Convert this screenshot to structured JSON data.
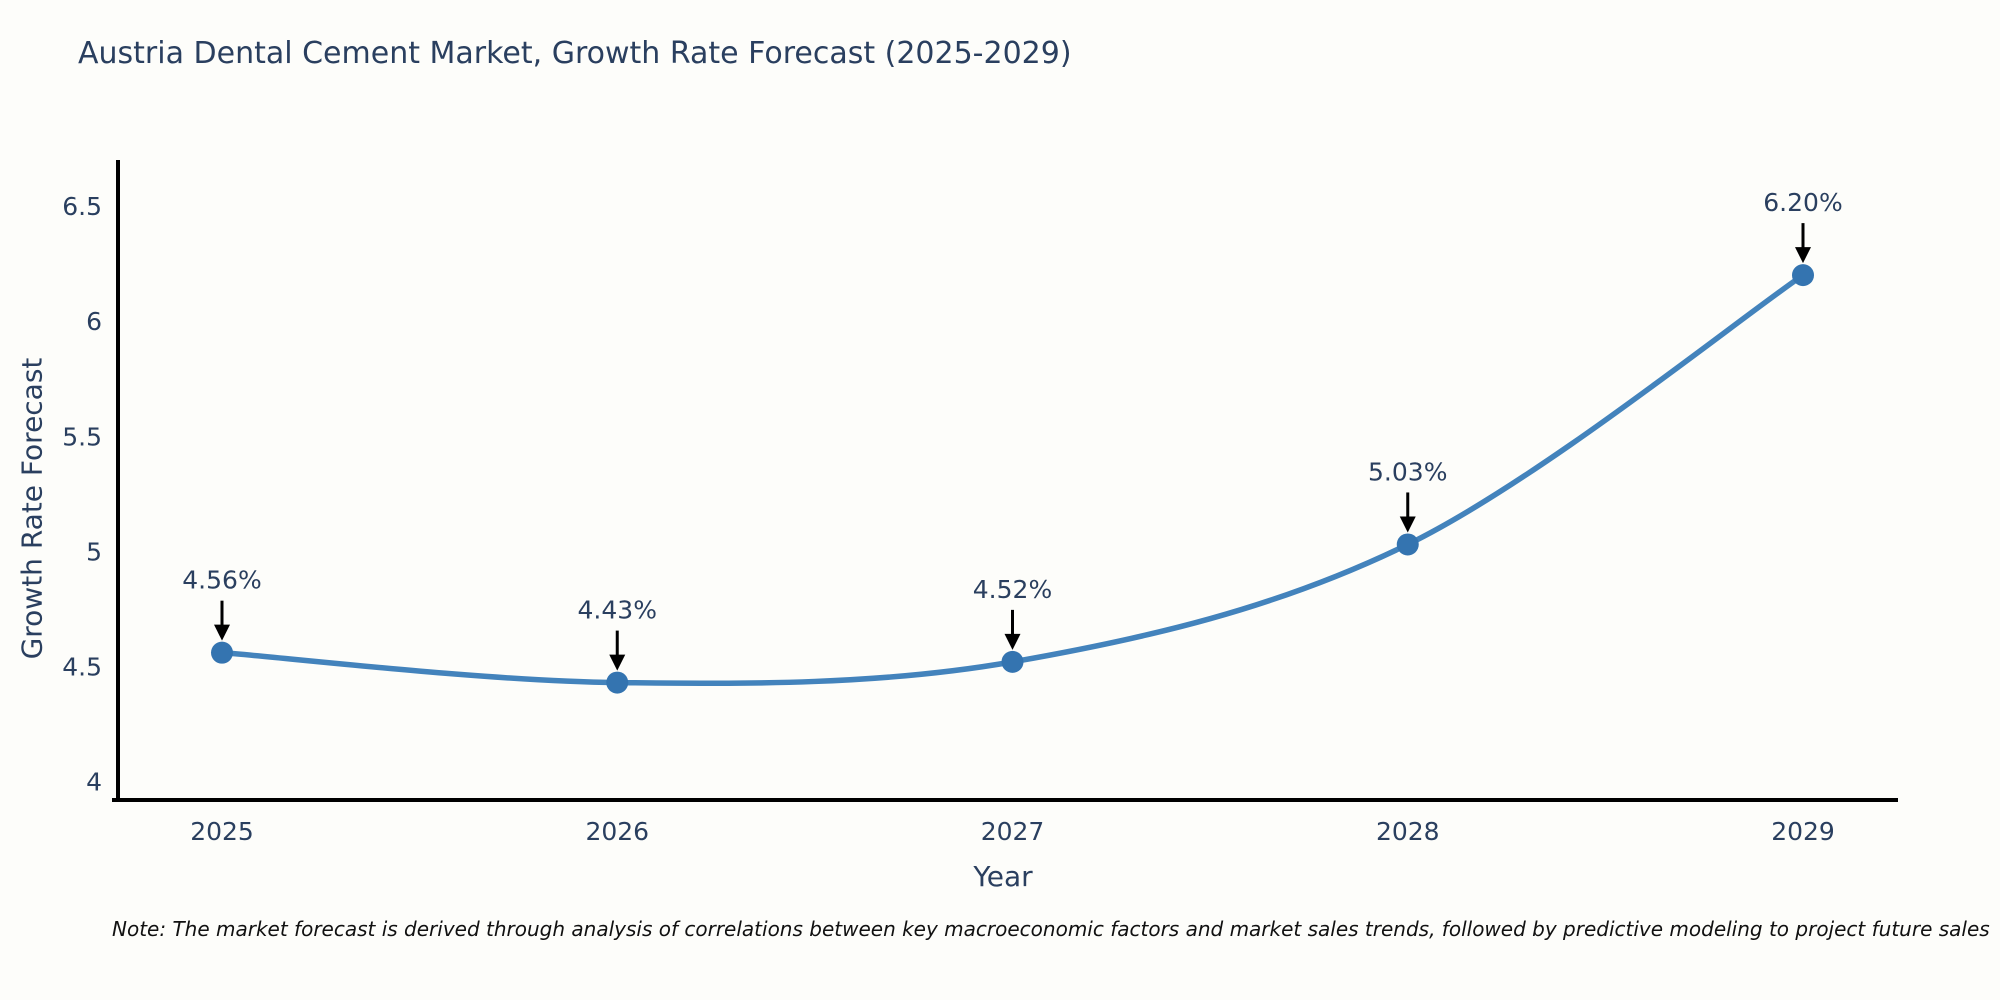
{
  "title": "Austria Dental Cement Market, Growth Rate Forecast (2025-2029)",
  "note": "Note: The market forecast is derived through analysis of correlations between key macroeconomic factors and market sales trends, followed by predictive modeling to project future sales",
  "chart_data": {
    "type": "line",
    "title": "Austria Dental Cement Market, Growth Rate Forecast (2025-2029)",
    "xlabel": "Year",
    "ylabel": "Growth Rate Forecast",
    "categories": [
      "2025",
      "2026",
      "2027",
      "2028",
      "2029"
    ],
    "series": [
      {
        "name": "Growth Rate Forecast",
        "values": [
          4.56,
          4.43,
          4.52,
          5.03,
          6.2
        ]
      }
    ],
    "point_labels": [
      "4.56%",
      "4.43%",
      "4.52%",
      "5.03%",
      "6.20%"
    ],
    "ytick_values": [
      4,
      4.5,
      5,
      5.5,
      6,
      6.5
    ],
    "ytick_labels": [
      "4",
      "4.5",
      "5",
      "5.5",
      "6",
      "6.5"
    ],
    "ylim": [
      3.92,
      6.7
    ],
    "grid": false,
    "legend_position": "none",
    "line_shape": "spline",
    "annotation_style": "arrow-down",
    "colors": {
      "line": "#4383bc",
      "marker": "#3474b0",
      "arrow": "#000000",
      "axis_line": "#000000",
      "tick_text": "#2a3f5f",
      "title_text": "#2a3f5f",
      "annotation_text": "#2a3f5f",
      "background": "#fdfdfa",
      "note_text": "#111111"
    }
  }
}
